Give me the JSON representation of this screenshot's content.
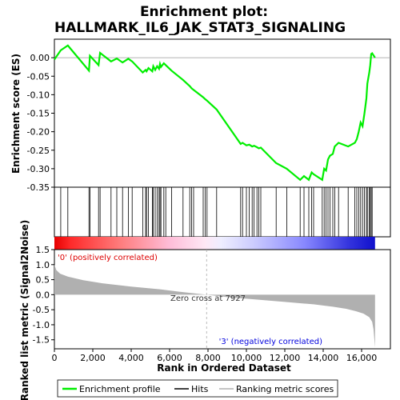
{
  "chart_data": {
    "type": "line",
    "title_line1": "Enrichment plot:",
    "title_line2": "HALLMARK_IL6_JAK_STAT3_SIGNALING",
    "es_ylabel": "Enrichment score (ES)",
    "metric_ylabel": "Ranked list metric (Signal2Noise)",
    "xlabel": "Rank in Ordered Dataset",
    "xlim": [
      0,
      17500
    ],
    "x_ticks": [
      0,
      2000,
      4000,
      6000,
      8000,
      10000,
      12000,
      14000,
      16000
    ],
    "x_tick_labels": [
      "0",
      "2,000",
      "4,000",
      "6,000",
      "8,000",
      "10,000",
      "12,000",
      "14,000",
      "16,000"
    ],
    "es_ylim": [
      -0.35,
      0.05
    ],
    "es_ticks": [
      0.0,
      -0.05,
      -0.1,
      -0.15,
      -0.2,
      -0.25,
      -0.3,
      -0.35
    ],
    "es_tick_labels": [
      "0.00",
      "-0.05",
      "-0.10",
      "-0.15",
      "-0.20",
      "-0.25",
      "-0.30",
      "-0.35"
    ],
    "metric_ylim": [
      -1.8,
      1.5
    ],
    "metric_ticks": [
      1.5,
      1.0,
      0.5,
      0.0,
      -0.5,
      -1.0,
      -1.5
    ],
    "metric_tick_labels": [
      "1.5",
      "1.0",
      "0.5",
      "0.0",
      "-0.5",
      "-1.0",
      "-1.5"
    ],
    "dataset_size": 16700,
    "zero_cross": 7927,
    "zero_cross_label": "Zero cross at 7927",
    "pos_label": "'0' (positively correlated)",
    "neg_label": "'3' (negatively correlated)",
    "legend": [
      "Enrichment profile",
      "Hits",
      "Ranking metric scores"
    ],
    "colors": {
      "es_line": "#00ee00",
      "hits": "#000000",
      "metric_fill": "#b0b0b0",
      "pos_text": "#dd0000",
      "neg_text": "#0000dd",
      "zero_line": "#aaaaaa"
    },
    "hits": [
      330,
      700,
      1800,
      1850,
      2300,
      2380,
      2950,
      3250,
      3550,
      3850,
      4050,
      4600,
      4750,
      4800,
      4900,
      5100,
      5150,
      5250,
      5350,
      5450,
      5500,
      5550,
      5700,
      5800,
      6100,
      6700,
      7050,
      7150,
      7250,
      7750,
      7850,
      7950,
      8450,
      9700,
      9800,
      10000,
      10150,
      10300,
      10400,
      10550,
      10650,
      10750,
      11550,
      12100,
      12800,
      13000,
      13250,
      13400,
      13500,
      13950,
      14050,
      14150,
      14250,
      14350,
      14500,
      14600,
      14800,
      15300,
      15650,
      15750,
      15850,
      15950,
      16050,
      16150,
      16250,
      16300,
      16400,
      16450,
      16500,
      16550
    ],
    "es_series": {
      "x": [
        0,
        330,
        700,
        1800,
        1850,
        2300,
        2380,
        2950,
        3250,
        3550,
        3850,
        4050,
        4600,
        4750,
        4800,
        4900,
        5100,
        5150,
        5250,
        5350,
        5450,
        5500,
        5550,
        5700,
        5800,
        6100,
        6700,
        7050,
        7150,
        7250,
        7750,
        7850,
        7950,
        8450,
        9700,
        9800,
        10000,
        10150,
        10300,
        10400,
        10550,
        10650,
        10750,
        11550,
        12100,
        12800,
        13000,
        13250,
        13400,
        13500,
        13950,
        14050,
        14150,
        14250,
        14350,
        14500,
        14600,
        14800,
        15300,
        15650,
        15750,
        15850,
        15950,
        16050,
        16150,
        16250,
        16300,
        16400,
        16450,
        16500,
        16550,
        16700
      ],
      "y": [
        -0.005,
        0.02,
        0.033,
        -0.035,
        0.005,
        -0.02,
        0.013,
        -0.01,
        -0.002,
        -0.013,
        -0.003,
        -0.01,
        -0.04,
        -0.033,
        -0.037,
        -0.028,
        -0.037,
        -0.023,
        -0.033,
        -0.023,
        -0.03,
        -0.017,
        -0.025,
        -0.015,
        -0.02,
        -0.035,
        -0.06,
        -0.077,
        -0.083,
        -0.087,
        -0.107,
        -0.112,
        -0.116,
        -0.14,
        -0.233,
        -0.23,
        -0.237,
        -0.235,
        -0.24,
        -0.238,
        -0.242,
        -0.245,
        -0.243,
        -0.285,
        -0.3,
        -0.33,
        -0.32,
        -0.33,
        -0.31,
        -0.315,
        -0.33,
        -0.3,
        -0.305,
        -0.275,
        -0.265,
        -0.26,
        -0.24,
        -0.23,
        -0.24,
        -0.23,
        -0.22,
        -0.2,
        -0.175,
        -0.185,
        -0.15,
        -0.11,
        -0.07,
        -0.04,
        -0.02,
        0.01,
        0.012,
        0.0
      ]
    },
    "metric_curve": {
      "x": [
        0,
        100,
        300,
        700,
        1500,
        2500,
        4000,
        5500,
        6500,
        7500,
        7927,
        9000,
        10500,
        12000,
        13500,
        14500,
        15200,
        15700,
        16100,
        16400,
        16550,
        16620,
        16700
      ],
      "y": [
        1.0,
        0.82,
        0.7,
        0.6,
        0.48,
        0.38,
        0.27,
        0.18,
        0.1,
        0.03,
        0.0,
        -0.08,
        -0.16,
        -0.24,
        -0.32,
        -0.4,
        -0.47,
        -0.55,
        -0.63,
        -0.75,
        -0.9,
        -1.15,
        -1.75
      ]
    }
  }
}
